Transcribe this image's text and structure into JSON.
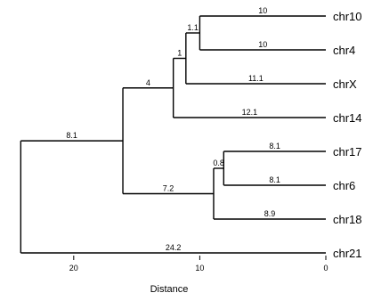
{
  "chart_data": {
    "type": "dendrogram",
    "xlabel": "Distance",
    "x_ticks": [
      20,
      10,
      0
    ],
    "x_range": [
      25,
      0
    ],
    "leaves": [
      "chr10",
      "chr4",
      "chrX",
      "chr14",
      "chr17",
      "chr6",
      "chr18",
      "chr21"
    ],
    "merges": [
      {
        "name": "n1",
        "children": [
          "chr10",
          "chr4"
        ],
        "height": 10,
        "branch_labels": [
          "10",
          "10"
        ]
      },
      {
        "name": "n2",
        "children": [
          "n1",
          "chrX"
        ],
        "height": 11.1,
        "branch_labels": [
          "1.1",
          "11.1"
        ]
      },
      {
        "name": "n3",
        "children": [
          "n2",
          "chr14"
        ],
        "height": 12.1,
        "branch_labels": [
          "1",
          "12.1"
        ]
      },
      {
        "name": "n4",
        "children": [
          "chr17",
          "chr6"
        ],
        "height": 8.1,
        "branch_labels": [
          "8.1",
          "8.1"
        ]
      },
      {
        "name": "n5",
        "children": [
          "n4",
          "chr18"
        ],
        "height": 8.9,
        "branch_labels": [
          "0.8",
          "8.9"
        ]
      },
      {
        "name": "n6",
        "children": [
          "n3",
          "n5"
        ],
        "height": 16.1,
        "branch_labels": [
          "4",
          "7.2"
        ]
      },
      {
        "name": "n7",
        "children": [
          "n6",
          "chr21"
        ],
        "height": 24.2,
        "branch_labels": [
          "8.1",
          "24.2"
        ]
      }
    ]
  }
}
